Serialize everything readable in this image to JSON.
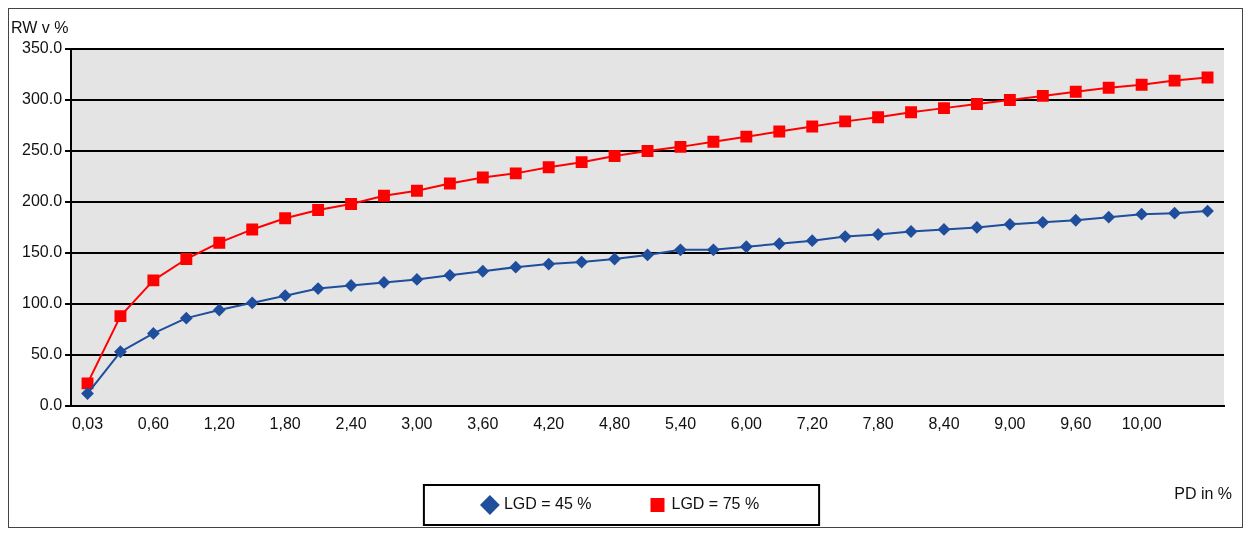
{
  "chart_data": {
    "type": "line",
    "categories": [
      "0,03",
      null,
      "0,60",
      null,
      "1,20",
      null,
      "1,80",
      null,
      "2,40",
      null,
      "3,00",
      null,
      "3,60",
      null,
      "4,20",
      null,
      "4,80",
      null,
      "5,40",
      null,
      "6,00",
      null,
      "7,20",
      null,
      "7,80",
      null,
      "8,40",
      null,
      "9,00",
      null,
      "9,60",
      null,
      "10,00",
      null,
      null
    ],
    "series": [
      {
        "name": "LGD = 45 %",
        "color": "#1f4e9c",
        "marker": "diamond",
        "values": [
          12,
          53,
          71,
          86,
          94,
          101,
          108,
          115,
          118,
          121,
          124,
          128,
          132,
          136,
          139,
          141,
          144,
          148,
          153,
          153,
          156,
          159,
          162,
          166,
          168,
          171,
          173,
          175,
          178,
          180,
          182,
          185,
          188,
          189,
          191
        ]
      },
      {
        "name": "LGD = 75 %",
        "color": "#ff0000",
        "marker": "square",
        "values": [
          22,
          88,
          123,
          144,
          160,
          173,
          184,
          192,
          198,
          206,
          211,
          218,
          224,
          228,
          234,
          239,
          245,
          250,
          254,
          259,
          264,
          269,
          274,
          279,
          283,
          288,
          292,
          296,
          300,
          304,
          308,
          312,
          315,
          319,
          322
        ]
      }
    ],
    "xlabel": "PD in %",
    "ylabel": "RW v %",
    "ylim": [
      0,
      350
    ],
    "yticks": [
      {
        "value": 0,
        "label": "0.0"
      },
      {
        "value": 50,
        "label": "50.0"
      },
      {
        "value": 100,
        "label": "100.0"
      },
      {
        "value": 150,
        "label": "150.0"
      },
      {
        "value": 200,
        "label": "200.0"
      },
      {
        "value": 250,
        "label": "250.0"
      },
      {
        "value": 300,
        "label": "300.0"
      },
      {
        "value": 350,
        "label": "350.0"
      }
    ],
    "grid": "y",
    "legend": "bottom",
    "line_style": "solid"
  }
}
